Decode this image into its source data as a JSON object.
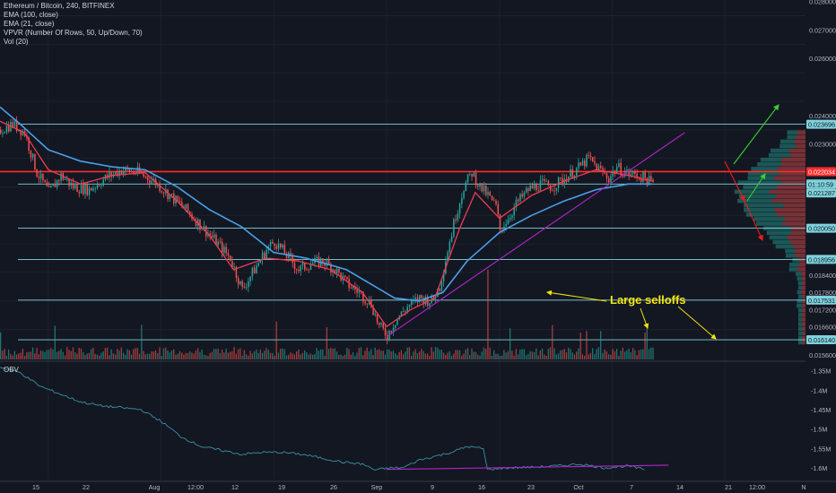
{
  "legend": {
    "title": "Ethereum / Bitcoin, 240, BITFINEX",
    "lines": [
      "EMA (100, close)",
      "EMA (21, close)",
      "VPVR (Number Of Rows, 50, Up/Down, 70)",
      "Vol (20)"
    ]
  },
  "obv_label": "OBV",
  "annotation": "Large selloffs",
  "colors": {
    "background": "#131722",
    "candle_up": "#26a69a",
    "candle_down": "#ef5350",
    "ema100": "#4a9fe8",
    "ema21": "#ef3c54",
    "level": "#7fd3dc",
    "resistance": "#ff2d2d",
    "trendline": "#b026c9",
    "obv": "#3d8ea5",
    "arrow_up": "#35d12b",
    "arrow_down": "#e81d1d",
    "annotation": "#f5e60b"
  },
  "chart_data": [
    {
      "type": "candlestick",
      "title": "Ethereum / Bitcoin, 240, BITFINEX",
      "ylim": [
        0.01545,
        0.02805
      ],
      "y_ticks": [
        "0.028000",
        "0.027000",
        "0.026000",
        "0.024000",
        "0.023000",
        "0.021287",
        "0.020050",
        "0.018400",
        "0.017800",
        "0.017200",
        "0.016600",
        "0.015600"
      ],
      "x_ticks": [
        "15",
        "22",
        "Aug",
        "12:00",
        "12",
        "19",
        "26",
        "Sep",
        "9",
        "16",
        "23",
        "Oct",
        "7",
        "14",
        "21",
        "12:00",
        "N"
      ],
      "highlighted_labels": [
        {
          "label": "0.023696",
          "value": 0.023696,
          "color": "#7fd3dc"
        },
        {
          "label": "0.022034",
          "value": 0.022034,
          "color": "#ff2d2d"
        },
        {
          "label": "01:10:59",
          "value": 0.0216,
          "color": "#7fd3dc"
        },
        {
          "label": "0.021287",
          "value": 0.021287,
          "color": "#7fd3dc"
        },
        {
          "label": "0.020050",
          "value": 0.02005,
          "color": "#7fd3dc"
        },
        {
          "label": "0.018956",
          "value": 0.018956,
          "color": "#7fd3dc"
        },
        {
          "label": "0.017531",
          "value": 0.017531,
          "color": "#7fd3dc"
        },
        {
          "label": "0.016140",
          "value": 0.01614,
          "color": "#7fd3dc"
        }
      ],
      "horizontal_levels": [
        0.023696,
        0.022034,
        0.0216,
        0.02005,
        0.018956,
        0.017531,
        0.01614
      ],
      "price_path": [
        [
          0,
          0.0235
        ],
        [
          3,
          0.0237
        ],
        [
          6,
          0.0234
        ],
        [
          9,
          0.022
        ],
        [
          12,
          0.0213
        ],
        [
          15,
          0.0219
        ],
        [
          18,
          0.0215
        ],
        [
          22,
          0.0214
        ],
        [
          26,
          0.0218
        ],
        [
          30,
          0.0221
        ],
        [
          34,
          0.022
        ],
        [
          38,
          0.0217
        ],
        [
          42,
          0.0212
        ],
        [
          46,
          0.0207
        ],
        [
          50,
          0.0201
        ],
        [
          54,
          0.0195
        ],
        [
          57,
          0.019
        ],
        [
          60,
          0.0179
        ],
        [
          63,
          0.0186
        ],
        [
          66,
          0.0193
        ],
        [
          68,
          0.0196
        ],
        [
          71,
          0.0191
        ],
        [
          74,
          0.0186
        ],
        [
          77,
          0.0188
        ],
        [
          80,
          0.0189
        ],
        [
          83,
          0.0186
        ],
        [
          86,
          0.0181
        ],
        [
          89,
          0.0178
        ],
        [
          92,
          0.0174
        ],
        [
          94,
          0.0166
        ],
        [
          96,
          0.0163
        ],
        [
          98,
          0.0168
        ],
        [
          101,
          0.0173
        ],
        [
          104,
          0.0176
        ],
        [
          107,
          0.0175
        ],
        [
          109,
          0.018
        ],
        [
          111,
          0.0193
        ],
        [
          113,
          0.0205
        ],
        [
          115,
          0.0215
        ],
        [
          117,
          0.022
        ],
        [
          119,
          0.0215
        ],
        [
          121,
          0.0212
        ],
        [
          123,
          0.0208
        ],
        [
          124,
          0.02
        ],
        [
          126,
          0.0204
        ],
        [
          128,
          0.0209
        ],
        [
          131,
          0.0214
        ],
        [
          134,
          0.0216
        ],
        [
          137,
          0.0215
        ],
        [
          140,
          0.0218
        ],
        [
          143,
          0.0221
        ],
        [
          146,
          0.0225
        ],
        [
          148,
          0.0222
        ],
        [
          151,
          0.0218
        ],
        [
          153,
          0.0222
        ],
        [
          155,
          0.022
        ],
        [
          158,
          0.0219
        ],
        [
          160,
          0.0218
        ],
        [
          162,
          0.0216
        ]
      ],
      "series": [
        {
          "name": "EMA (100, close)",
          "points": [
            [
              0,
              0.0243
            ],
            [
              5,
              0.0237
            ],
            [
              12,
              0.0228
            ],
            [
              20,
              0.0224
            ],
            [
              28,
              0.0222
            ],
            [
              36,
              0.0221
            ],
            [
              44,
              0.0215
            ],
            [
              52,
              0.0207
            ],
            [
              60,
              0.0201
            ],
            [
              68,
              0.0192
            ],
            [
              76,
              0.019
            ],
            [
              86,
              0.0186
            ],
            [
              92,
              0.0181
            ],
            [
              98,
              0.0176
            ],
            [
              104,
              0.0175
            ],
            [
              110,
              0.0178
            ],
            [
              116,
              0.0189
            ],
            [
              124,
              0.0199
            ],
            [
              132,
              0.0205
            ],
            [
              140,
              0.021
            ],
            [
              148,
              0.0214
            ],
            [
              156,
              0.0216
            ],
            [
              162,
              0.0216
            ]
          ]
        },
        {
          "name": "EMA (21, close)",
          "points": [
            [
              0,
              0.0238
            ],
            [
              6,
              0.0234
            ],
            [
              12,
              0.0221
            ],
            [
              20,
              0.0216
            ],
            [
              28,
              0.0219
            ],
            [
              36,
              0.022
            ],
            [
              44,
              0.021
            ],
            [
              52,
              0.0198
            ],
            [
              58,
              0.0186
            ],
            [
              66,
              0.019
            ],
            [
              74,
              0.0189
            ],
            [
              82,
              0.0186
            ],
            [
              90,
              0.0178
            ],
            [
              96,
              0.0166
            ],
            [
              102,
              0.0172
            ],
            [
              108,
              0.0176
            ],
            [
              114,
              0.02
            ],
            [
              118,
              0.0213
            ],
            [
              124,
              0.0204
            ],
            [
              132,
              0.0212
            ],
            [
              140,
              0.0217
            ],
            [
              148,
              0.0221
            ],
            [
              156,
              0.0219
            ],
            [
              162,
              0.0217
            ]
          ]
        }
      ],
      "volume_spikes": [
        {
          "x": 121,
          "label": "Large selloffs"
        },
        {
          "x": 144,
          "label": "Large selloffs"
        },
        {
          "x": 160,
          "label": "Large selloffs"
        }
      ]
    },
    {
      "type": "line",
      "title": "OBV",
      "ylim": [
        -1.63,
        -1.33
      ],
      "y_ticks": [
        "-1.35M",
        "-1.4M",
        "-1.45M",
        "-1.5M",
        "-1.55M",
        "-1.6M"
      ],
      "series": [
        {
          "name": "OBV",
          "points": [
            [
              0,
              -1.34
            ],
            [
              5,
              -1.355
            ],
            [
              10,
              -1.39
            ],
            [
              15,
              -1.41
            ],
            [
              20,
              -1.43
            ],
            [
              25,
              -1.44
            ],
            [
              30,
              -1.445
            ],
            [
              35,
              -1.45
            ],
            [
              40,
              -1.48
            ],
            [
              45,
              -1.52
            ],
            [
              50,
              -1.545
            ],
            [
              55,
              -1.555
            ],
            [
              60,
              -1.565
            ],
            [
              65,
              -1.56
            ],
            [
              70,
              -1.56
            ],
            [
              75,
              -1.565
            ],
            [
              80,
              -1.575
            ],
            [
              85,
              -1.585
            ],
            [
              90,
              -1.59
            ],
            [
              93,
              -1.605
            ],
            [
              97,
              -1.6
            ],
            [
              100,
              -1.6
            ],
            [
              104,
              -1.58
            ],
            [
              108,
              -1.57
            ],
            [
              112,
              -1.56
            ],
            [
              116,
              -1.545
            ],
            [
              120,
              -1.55
            ],
            [
              121,
              -1.604
            ],
            [
              126,
              -1.6
            ],
            [
              132,
              -1.598
            ],
            [
              138,
              -1.595
            ],
            [
              144,
              -1.59
            ],
            [
              150,
              -1.6
            ],
            [
              156,
              -1.595
            ],
            [
              160,
              -1.604
            ]
          ]
        }
      ]
    }
  ]
}
